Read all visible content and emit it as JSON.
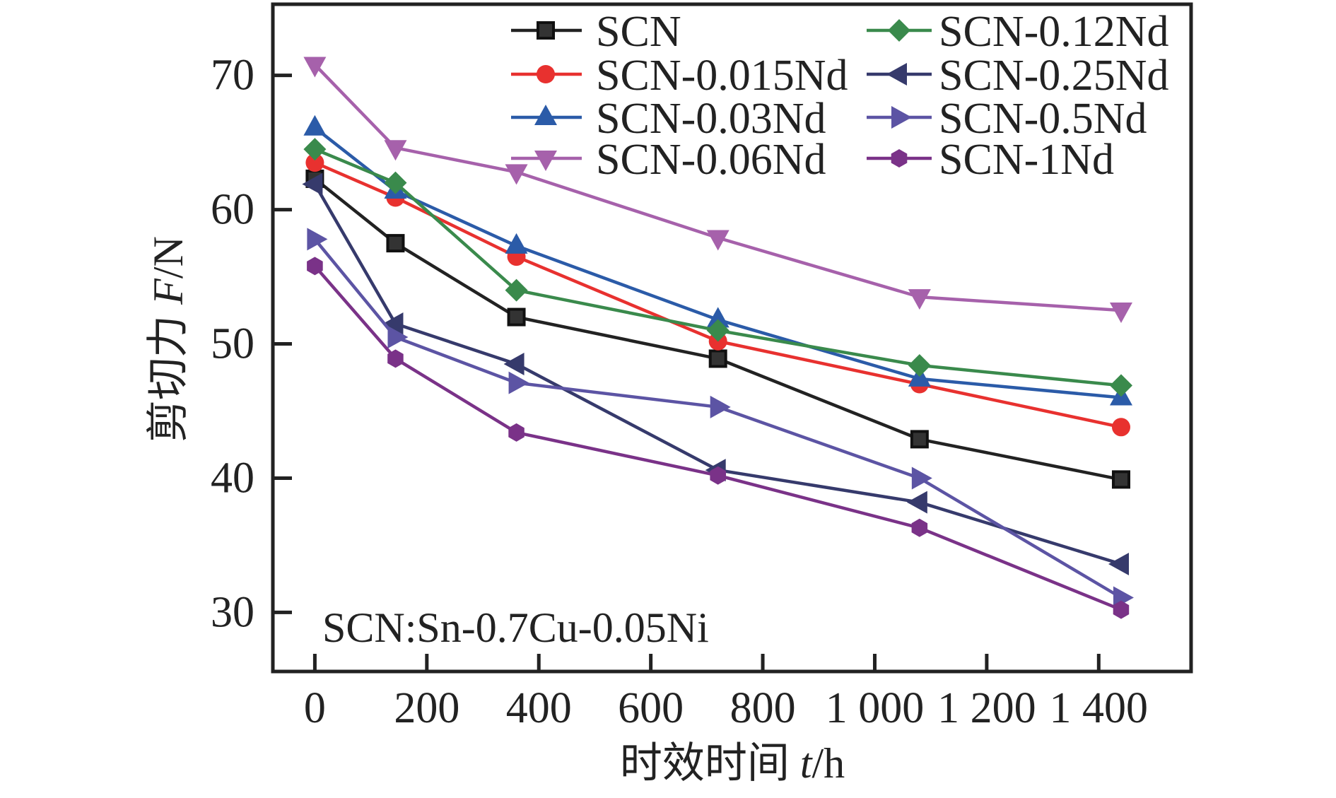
{
  "chart_data": {
    "type": "line",
    "title": "",
    "xlabel": "时效时间",
    "xlabel_var": "t",
    "xlabel_unit": "/h",
    "ylabel": "剪切力",
    "ylabel_var": "F",
    "ylabel_unit": "/N",
    "xlim": [
      -75,
      1565
    ],
    "ylim": [
      25.6,
      75.3
    ],
    "xticks": [
      0,
      200,
      400,
      600,
      800,
      1000,
      1200,
      1400
    ],
    "xtick_labels": [
      "0",
      "200",
      "400",
      "600",
      "800",
      "1 000",
      "1 200",
      "1 400"
    ],
    "yticks": [
      30,
      40,
      50,
      60,
      70
    ],
    "ytick_labels": [
      "30",
      "40",
      "50",
      "60",
      "70"
    ],
    "grid": false,
    "legend_position": "top-right",
    "legend_columns": 2,
    "annotation": "SCN:Sn-0.7Cu-0.05Ni",
    "x": [
      0,
      144,
      360,
      720,
      1080,
      1440
    ],
    "series": [
      {
        "name": "SCN",
        "marker": "square",
        "color": "#222222",
        "values": [
          62.3,
          57.5,
          52.0,
          48.9,
          42.9,
          39.9
        ]
      },
      {
        "name": "SCN-0.015Nd",
        "marker": "circle",
        "color": "#e8312f",
        "values": [
          63.5,
          60.9,
          56.5,
          50.2,
          47.0,
          43.8
        ]
      },
      {
        "name": "SCN-0.03Nd",
        "marker": "triangle-up",
        "color": "#2b5ba8",
        "values": [
          66.1,
          61.4,
          57.3,
          51.8,
          47.4,
          46.0
        ]
      },
      {
        "name": "SCN-0.06Nd",
        "marker": "triangle-down",
        "color": "#a661ab",
        "values": [
          70.8,
          64.6,
          62.8,
          57.9,
          53.5,
          52.5
        ]
      },
      {
        "name": "SCN-0.12Nd",
        "marker": "diamond",
        "color": "#3a8a4c",
        "values": [
          64.5,
          62.0,
          54.0,
          51.0,
          48.4,
          46.9
        ]
      },
      {
        "name": "SCN-0.25Nd",
        "marker": "triangle-left",
        "color": "#363a6c",
        "values": [
          61.9,
          51.5,
          48.5,
          40.6,
          38.2,
          33.6
        ]
      },
      {
        "name": "SCN-0.5Nd",
        "marker": "triangle-right",
        "color": "#5c54a4",
        "values": [
          57.8,
          50.5,
          47.1,
          45.3,
          40.0,
          31.1
        ]
      },
      {
        "name": "SCN-1Nd",
        "marker": "hexagon",
        "color": "#7a3288",
        "values": [
          55.8,
          48.9,
          43.4,
          40.2,
          36.3,
          30.2
        ]
      }
    ]
  }
}
